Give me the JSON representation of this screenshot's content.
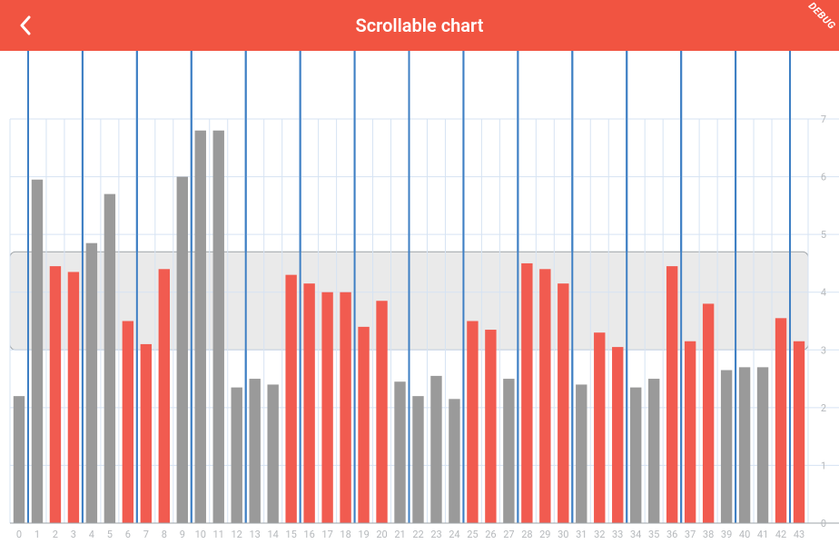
{
  "header": {
    "title": "Scrollable chart",
    "debug_label": "DEBUG",
    "background_color": "#f15441",
    "title_color": "#ffffff"
  },
  "chart": {
    "type": "bar",
    "background_color": "#ffffff",
    "bar_width_ratio": 0.62,
    "vertical_major_color": "#3e7fc4",
    "vertical_major_width": 2,
    "vertical_major_every": 3,
    "grid_minor_color": "#d6e3f3",
    "grid_minor_width": 1,
    "axis_line_color": "#9ea3a7",
    "tick_label_color": "#b6b9bc",
    "tick_label_fontsize": 11,
    "ylim": [
      0,
      7
    ],
    "ytick_step": 1,
    "x_start": 0,
    "x_end": 43,
    "highlight_band": {
      "y_min": 3.0,
      "y_max": 4.7,
      "fill": "#eaeaea",
      "stroke": "#9ea3a7",
      "corner_radius": 6
    },
    "colors": {
      "gray": "#9a9a9a",
      "red": "#f15b50"
    },
    "bars": [
      {
        "x": 0,
        "y": 2.2,
        "c": "gray"
      },
      {
        "x": 1,
        "y": 5.95,
        "c": "gray"
      },
      {
        "x": 2,
        "y": 4.45,
        "c": "red"
      },
      {
        "x": 3,
        "y": 4.35,
        "c": "red"
      },
      {
        "x": 4,
        "y": 4.85,
        "c": "gray"
      },
      {
        "x": 5,
        "y": 5.7,
        "c": "gray"
      },
      {
        "x": 6,
        "y": 3.5,
        "c": "red"
      },
      {
        "x": 7,
        "y": 3.1,
        "c": "red"
      },
      {
        "x": 8,
        "y": 4.4,
        "c": "red"
      },
      {
        "x": 9,
        "y": 6.0,
        "c": "gray"
      },
      {
        "x": 10,
        "y": 6.8,
        "c": "gray"
      },
      {
        "x": 11,
        "y": 6.8,
        "c": "gray"
      },
      {
        "x": 12,
        "y": 2.35,
        "c": "gray"
      },
      {
        "x": 13,
        "y": 2.5,
        "c": "gray"
      },
      {
        "x": 14,
        "y": 2.4,
        "c": "gray"
      },
      {
        "x": 15,
        "y": 4.3,
        "c": "red"
      },
      {
        "x": 16,
        "y": 4.15,
        "c": "red"
      },
      {
        "x": 17,
        "y": 4.0,
        "c": "red"
      },
      {
        "x": 18,
        "y": 4.0,
        "c": "red"
      },
      {
        "x": 19,
        "y": 3.4,
        "c": "red"
      },
      {
        "x": 20,
        "y": 3.85,
        "c": "red"
      },
      {
        "x": 21,
        "y": 2.45,
        "c": "gray"
      },
      {
        "x": 22,
        "y": 2.2,
        "c": "gray"
      },
      {
        "x": 23,
        "y": 2.55,
        "c": "gray"
      },
      {
        "x": 24,
        "y": 2.15,
        "c": "gray"
      },
      {
        "x": 25,
        "y": 3.5,
        "c": "red"
      },
      {
        "x": 26,
        "y": 3.35,
        "c": "red"
      },
      {
        "x": 27,
        "y": 2.5,
        "c": "gray"
      },
      {
        "x": 28,
        "y": 4.5,
        "c": "red"
      },
      {
        "x": 29,
        "y": 4.4,
        "c": "red"
      },
      {
        "x": 30,
        "y": 4.15,
        "c": "red"
      },
      {
        "x": 31,
        "y": 2.4,
        "c": "gray"
      },
      {
        "x": 32,
        "y": 3.3,
        "c": "red"
      },
      {
        "x": 33,
        "y": 3.05,
        "c": "red"
      },
      {
        "x": 34,
        "y": 2.35,
        "c": "gray"
      },
      {
        "x": 35,
        "y": 2.5,
        "c": "gray"
      },
      {
        "x": 36,
        "y": 4.45,
        "c": "red"
      },
      {
        "x": 37,
        "y": 3.15,
        "c": "red"
      },
      {
        "x": 38,
        "y": 3.8,
        "c": "red"
      },
      {
        "x": 39,
        "y": 2.65,
        "c": "gray"
      },
      {
        "x": 40,
        "y": 2.7,
        "c": "gray"
      },
      {
        "x": 41,
        "y": 2.7,
        "c": "gray"
      },
      {
        "x": 42,
        "y": 3.55,
        "c": "red"
      },
      {
        "x": 43,
        "y": 3.15,
        "c": "red"
      }
    ]
  }
}
